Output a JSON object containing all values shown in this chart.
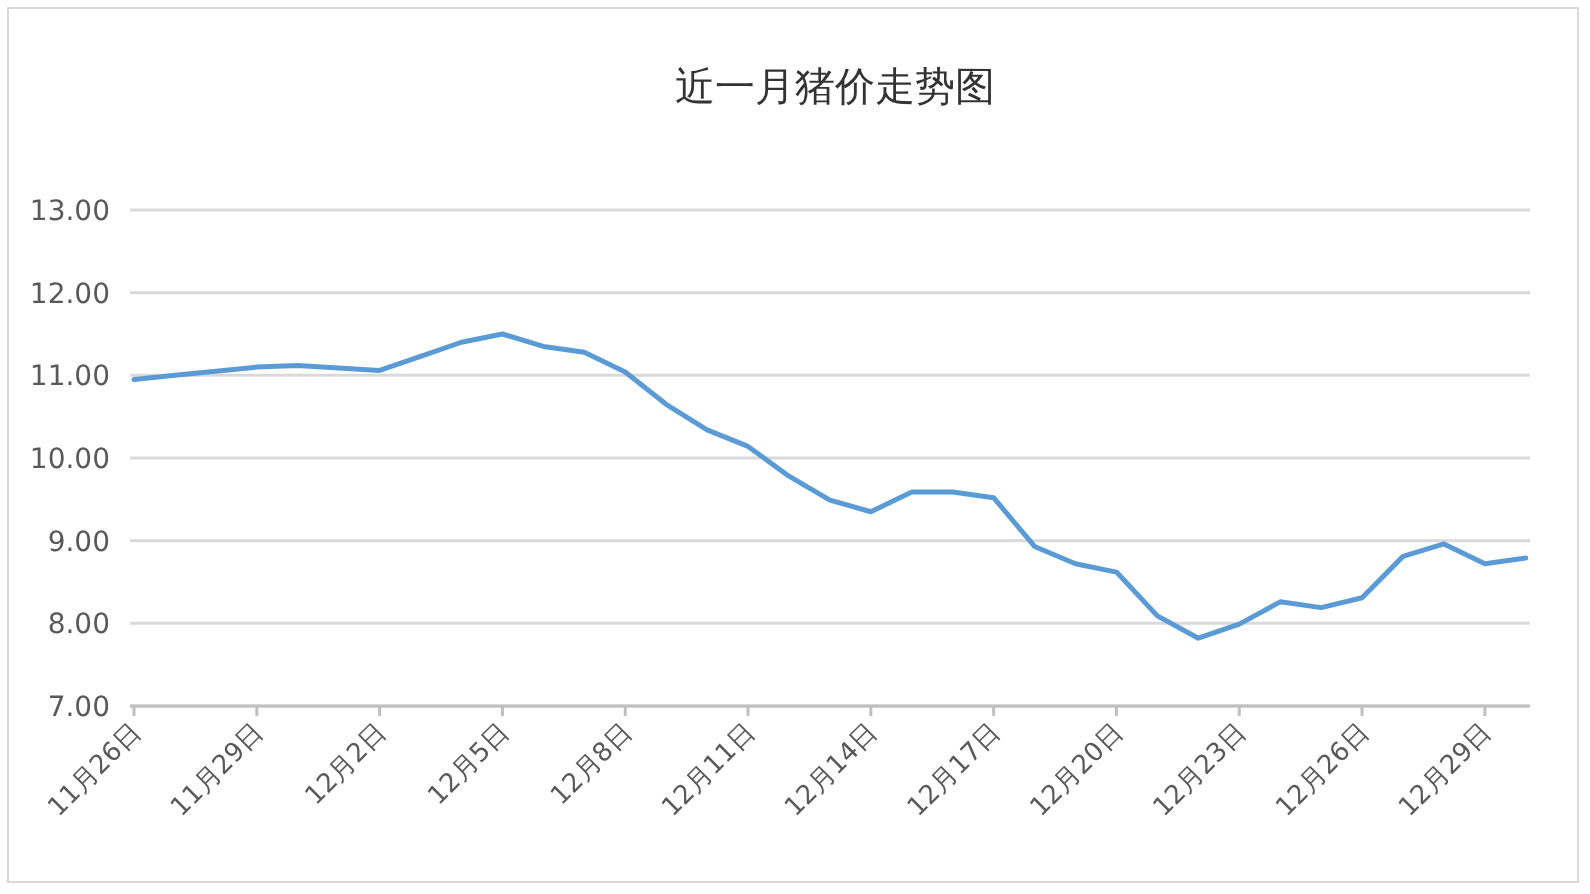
{
  "chart_data": {
    "type": "line",
    "title": "近一月猪价走势图",
    "categories": [
      "11月26日",
      null,
      null,
      "11月29日",
      null,
      null,
      "12月2日",
      null,
      null,
      "12月5日",
      null,
      null,
      "12月8日",
      null,
      null,
      "12月11日",
      null,
      null,
      "12月14日",
      null,
      null,
      "12月17日",
      null,
      null,
      "12月20日",
      null,
      null,
      "12月23日",
      null,
      null,
      "12月26日",
      null,
      null,
      "12月29日",
      null
    ],
    "series": [
      {
        "color": "#5b9bd5",
        "values": [
          10.95,
          11.0,
          11.05,
          11.1,
          11.12,
          11.09,
          11.06,
          11.23,
          11.4,
          11.5,
          11.35,
          11.28,
          11.04,
          10.65,
          10.34,
          10.14,
          9.78,
          9.49,
          9.35,
          9.59,
          9.59,
          9.52,
          8.93,
          8.72,
          8.62,
          8.09,
          7.82,
          7.99,
          8.26,
          8.19,
          8.31,
          8.81,
          8.96,
          8.72,
          8.79
        ]
      }
    ],
    "ylim": [
      7,
      13
    ],
    "yticks": [
      {
        "value": 7,
        "label": "7.00"
      },
      {
        "value": 8,
        "label": "8.00"
      },
      {
        "value": 9,
        "label": "9.00"
      },
      {
        "value": 10,
        "label": "10.00"
      },
      {
        "value": 11,
        "label": "11.00"
      },
      {
        "value": 12,
        "label": "12.00"
      },
      {
        "value": 13,
        "label": "13.00"
      }
    ],
    "grid": "y"
  }
}
